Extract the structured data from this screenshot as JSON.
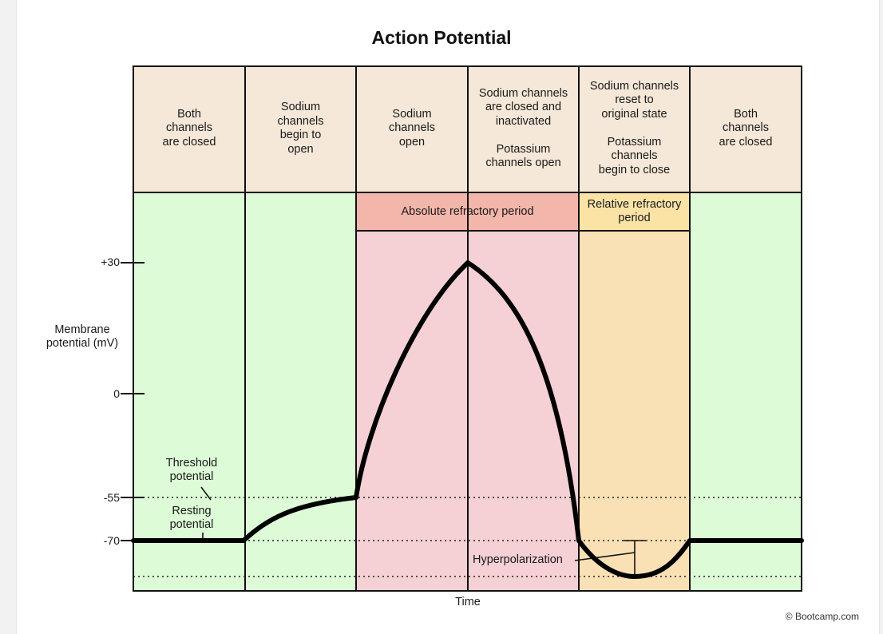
{
  "title": "Action Potential",
  "phases": [
    {
      "label": "Both\nchannels\nare closed"
    },
    {
      "label": "Sodium\nchannels\nbegin to\nopen"
    },
    {
      "label": "Sodium\nchannels\nopen"
    },
    {
      "label": "Sodium channels\nare closed and\ninactivated\n\nPotassium\nchannels open"
    },
    {
      "label": "Sodium channels\nreset to\noriginal state\n\nPotassium\nchannels\nbegin to close"
    },
    {
      "label": "Both\nchannels\nare closed"
    }
  ],
  "refractory": {
    "absolute": "Absolute refractory period",
    "relative": "Relative refractory\nperiod"
  },
  "y_axis": {
    "label": "Membrane\npotential (mV)",
    "ticks": [
      "+30",
      "0",
      "-55",
      "-70"
    ]
  },
  "x_axis": {
    "label": "Time"
  },
  "annotations": {
    "threshold": "Threshold\npotential",
    "resting": "Resting\npotential",
    "hyperpolarization": "Hyperpolarization"
  },
  "credit": "© Bootcamp.com",
  "colors": {
    "header_fill": "#f5e8d8",
    "green_fill": "#dcfbd6",
    "pink_fill": "#f5d0d5",
    "absolute_band": "#f3b6aa",
    "orange_fill": "#fae1b5",
    "relative_band": "#fbe3a6",
    "curve": "#000000"
  }
}
